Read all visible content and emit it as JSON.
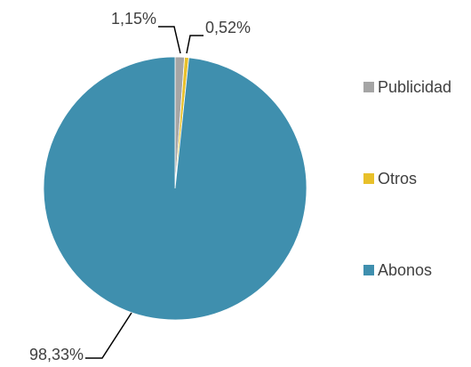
{
  "chart_data": {
    "type": "pie",
    "categories": [
      "Publicidad",
      "Otros",
      "Abonos"
    ],
    "values": [
      1.15,
      0.52,
      98.33
    ],
    "value_labels": [
      "1,15%",
      "0,52%",
      "98,33%"
    ],
    "colors": [
      "#a5a5a5",
      "#e8c02a",
      "#3f8fae"
    ],
    "legend": "right"
  }
}
